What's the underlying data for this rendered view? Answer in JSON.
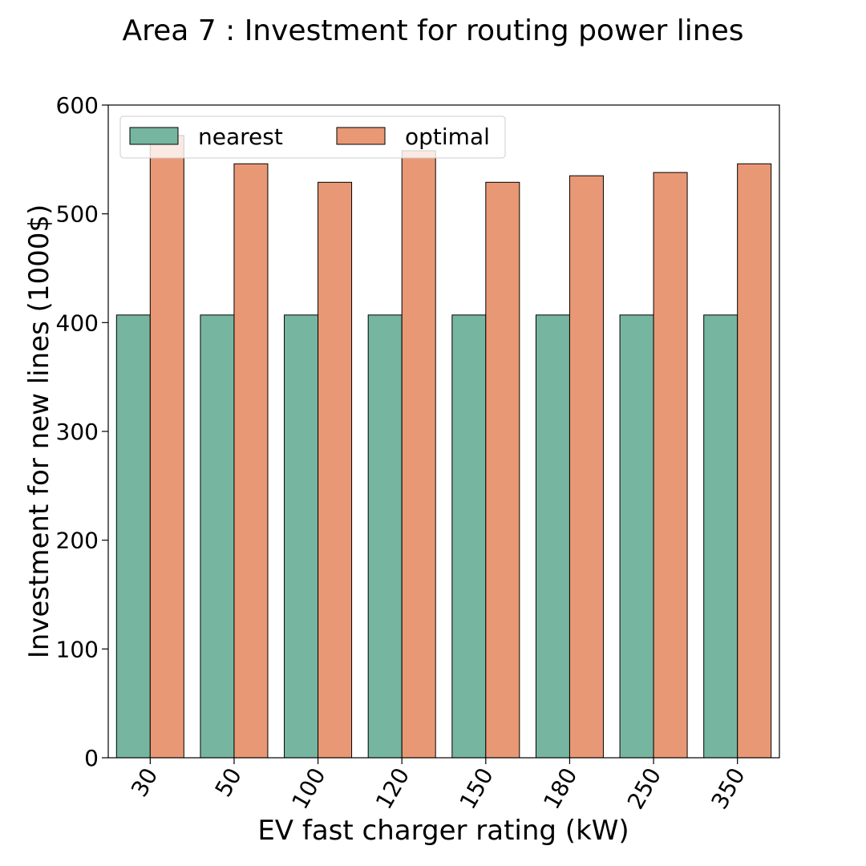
{
  "chart_data": {
    "type": "bar",
    "title": "Area 7 : Investment for routing power lines",
    "xlabel": "EV fast charger rating (kW)",
    "ylabel": "Investment for new lines (1000$)",
    "categories": [
      "30",
      "50",
      "100",
      "120",
      "150",
      "180",
      "250",
      "350"
    ],
    "series": [
      {
        "name": "nearest",
        "color": "#76b6a0",
        "values": [
          407,
          407,
          407,
          407,
          407,
          407,
          407,
          407
        ]
      },
      {
        "name": "optimal",
        "color": "#e99875",
        "values": [
          572,
          546,
          529,
          558,
          529,
          535,
          538,
          546
        ]
      }
    ],
    "ylim": [
      0,
      600
    ],
    "yticks": [
      0,
      100,
      200,
      300,
      400,
      500,
      600
    ],
    "grid": false,
    "legend_position": "top-left",
    "legend_columns": 2
  }
}
